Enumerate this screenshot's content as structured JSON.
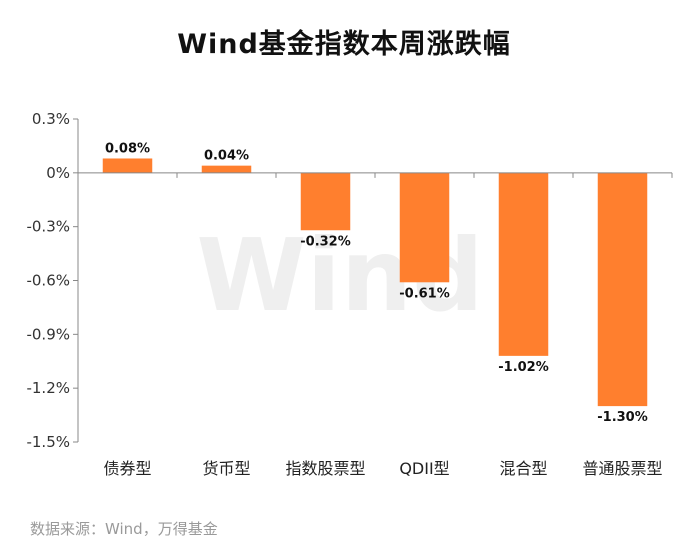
{
  "chart_data": {
    "type": "bar",
    "title": "Wind基金指数本周涨跌幅",
    "categories": [
      "债券型",
      "货币型",
      "指数股票型",
      "QDII型",
      "混合型",
      "普通股票型"
    ],
    "values": [
      0.08,
      0.04,
      -0.32,
      -0.61,
      -1.02,
      -1.3
    ],
    "data_labels": [
      "0.08%",
      "0.04%",
      "-0.32%",
      "-0.61%",
      "-1.02%",
      "-1.30%"
    ],
    "y_ticks": [
      0.3,
      0,
      -0.3,
      -0.6,
      -0.9,
      -1.2,
      -1.5
    ],
    "y_tick_labels": [
      "0.3%",
      "0%",
      "-0.3%",
      "-0.6%",
      "-0.9%",
      "-1.2%",
      "-1.5%"
    ],
    "ylim": [
      -1.5,
      0.3
    ],
    "xlabel": "",
    "ylabel": "",
    "grid": false,
    "bar_color": "#FF7F2E",
    "axis_color": "#888888",
    "watermark": "Wind"
  },
  "source_note": "数据来源：Wind，万得基金"
}
